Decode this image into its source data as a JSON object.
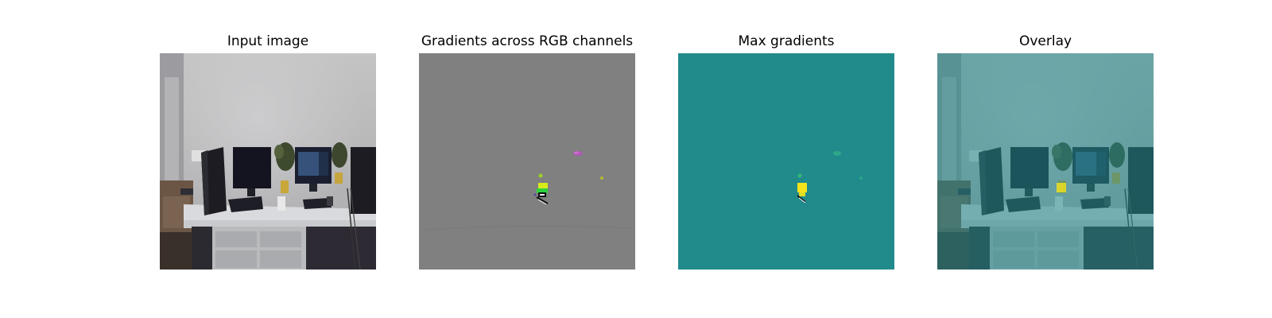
{
  "figure": {
    "panels": [
      {
        "title": "Input image",
        "image": "office-desk-photo"
      },
      {
        "title": "Gradients across RGB channels",
        "image": "rgb-gradient-map"
      },
      {
        "title": "Max gradients",
        "image": "max-gradient-heatmap"
      },
      {
        "title": "Overlay",
        "image": "overlay-photo-heatmap"
      }
    ]
  },
  "colors": {
    "figure_background": "#ffffff",
    "gradient_background": "#808080",
    "heatmap_background": "#218b8c",
    "heatmap_peak": "#f5e41c",
    "heatmap_secondary": "#2fb47c"
  }
}
